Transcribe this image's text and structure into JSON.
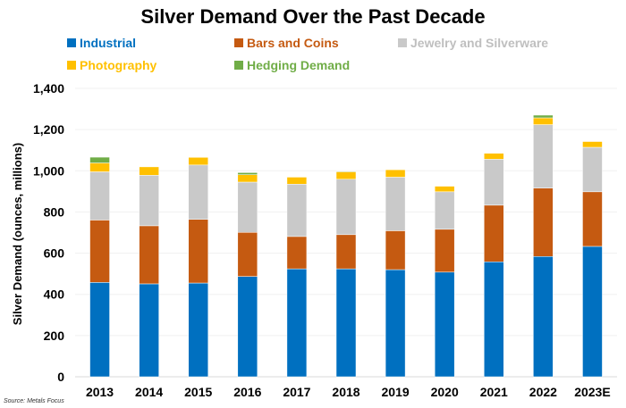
{
  "chart_data": {
    "type": "bar",
    "stacked": true,
    "title": "Silver Demand Over the Past Decade",
    "xlabel": "",
    "ylabel": "Silver Demand (ounces, millions)",
    "ylim": [
      0,
      1400
    ],
    "yticks": [
      "0",
      "200",
      "400",
      "600",
      "800",
      "1,000",
      "1,200",
      "1,400"
    ],
    "grid": true,
    "legend_position": "top",
    "categories": [
      "2013",
      "2014",
      "2015",
      "2016",
      "2017",
      "2018",
      "2019",
      "2020",
      "2021",
      "2022",
      "2023E"
    ],
    "series": [
      {
        "name": "Industrial",
        "color": "#0070C0",
        "text_color": "#0070C0",
        "values": [
          458,
          451,
          455,
          487,
          524,
          524,
          520,
          508,
          558,
          584,
          633
        ]
      },
      {
        "name": "Bars and Coins",
        "color": "#C55A11",
        "text_color": "#C55A11",
        "values": [
          303,
          282,
          309,
          214,
          157,
          166,
          189,
          208,
          275,
          332,
          265
        ]
      },
      {
        "name": "Jewelry and Silverware",
        "color": "#C9C9C9",
        "text_color": "#BFBFBF",
        "values": [
          234,
          245,
          264,
          244,
          254,
          269,
          260,
          182,
          223,
          308,
          216
        ]
      },
      {
        "name": "Photography",
        "color": "#FFC000",
        "text_color": "#FFC000",
        "values": [
          43,
          41,
          37,
          36,
          34,
          36,
          36,
          27,
          29,
          33,
          28
        ]
      },
      {
        "name": "Hedging Demand",
        "color": "#70AD47",
        "text_color": "#70AD47",
        "values": [
          28,
          0,
          0,
          10,
          0,
          3,
          0,
          0,
          0,
          13,
          0
        ]
      }
    ],
    "source": "Source: Metals Focus"
  }
}
